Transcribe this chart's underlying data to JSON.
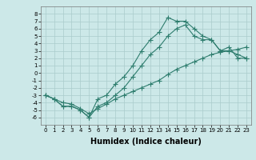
{
  "title": "",
  "xlabel": "Humidex (Indice chaleur)",
  "bg_color": "#cce8e8",
  "grid_color": "#aacccc",
  "line_color": "#2e7d6e",
  "xlim": [
    -0.5,
    23.5
  ],
  "ylim": [
    -7,
    9
  ],
  "yticks": [
    -6,
    -5,
    -4,
    -3,
    -2,
    -1,
    0,
    1,
    2,
    3,
    4,
    5,
    6,
    7,
    8
  ],
  "xticks": [
    0,
    1,
    2,
    3,
    4,
    5,
    6,
    7,
    8,
    9,
    10,
    11,
    12,
    13,
    14,
    15,
    16,
    17,
    18,
    19,
    20,
    21,
    22,
    23
  ],
  "line1_x": [
    0,
    1,
    2,
    3,
    4,
    5,
    6,
    7,
    8,
    9,
    10,
    11,
    12,
    13,
    14,
    15,
    16,
    17,
    18,
    19,
    20,
    21,
    22,
    23
  ],
  "line1_y": [
    -3,
    -3.5,
    -4.5,
    -4.5,
    -5,
    -6,
    -4.5,
    -4,
    -3,
    -2,
    -0.5,
    1,
    2.5,
    3.5,
    5,
    6,
    6.5,
    5,
    4.5,
    4.5,
    3,
    3.5,
    2,
    2
  ],
  "line2_x": [
    0,
    1,
    2,
    3,
    4,
    5,
    6,
    7,
    8,
    9,
    10,
    11,
    12,
    13,
    14,
    15,
    16,
    17,
    18,
    19,
    20,
    21,
    22,
    23
  ],
  "line2_y": [
    -3,
    -3.5,
    -4.5,
    -4.5,
    -5,
    -6,
    -3.5,
    -3,
    -1.5,
    -0.5,
    1,
    3,
    4.5,
    5.5,
    7.5,
    7,
    7,
    6,
    5,
    4.5,
    3,
    3,
    2.5,
    2
  ],
  "line3_x": [
    0,
    1,
    2,
    3,
    4,
    5,
    6,
    7,
    8,
    9,
    10,
    11,
    12,
    13,
    14,
    15,
    16,
    17,
    18,
    19,
    20,
    21,
    22,
    23
  ],
  "line3_y": [
    -3,
    -3.5,
    -4.0,
    -4.2,
    -4.8,
    -5.5,
    -4.8,
    -4.2,
    -3.5,
    -3.0,
    -2.5,
    -2.0,
    -1.5,
    -1.0,
    -0.2,
    0.5,
    1.0,
    1.5,
    2.0,
    2.5,
    2.8,
    3.0,
    3.2,
    3.5
  ],
  "tick_fontsize": 5,
  "xlabel_fontsize": 7
}
